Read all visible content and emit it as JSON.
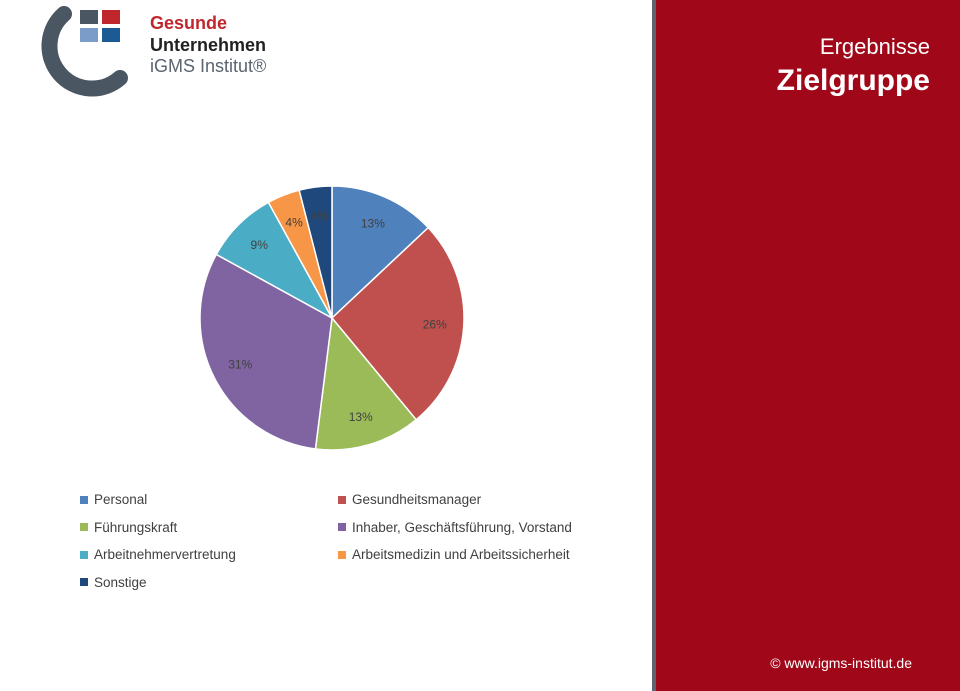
{
  "logo": {
    "line1": "Gesunde",
    "line2": "Unternehmen",
    "line3": "iGMS Institut®",
    "squares": [
      "#4a5662",
      "#c0272d",
      "#7b9bc8",
      "#1c5a94"
    ]
  },
  "header": {
    "pre_title": "Ergebnisse",
    "title": "Zielgruppe"
  },
  "footer": {
    "text": "© www.igms-institut.de"
  },
  "colors": {
    "right_panel": "#a00718",
    "divider": "#5b6470"
  },
  "chart_data": {
    "type": "pie",
    "title": "",
    "slices": [
      {
        "label": "Personal",
        "value": 13,
        "display": "13%",
        "color": "#4f81bd"
      },
      {
        "label": "Gesundheitsmanager",
        "value": 26,
        "display": "26%",
        "color": "#c0504d"
      },
      {
        "label": "Führungskraft",
        "value": 13,
        "display": "13%",
        "color": "#9bbb59"
      },
      {
        "label": "Inhaber, Geschäftsführung, Vorstand",
        "value": 31,
        "display": "31%",
        "color": "#8064a2"
      },
      {
        "label": "Arbeitnehmervertretung",
        "value": 9,
        "display": "9%",
        "color": "#4bacc6"
      },
      {
        "label": "Arbeitsmedizin und Arbeitssicherheit",
        "value": 4,
        "display": "4%",
        "color": "#f79646"
      },
      {
        "label": "Sonstige",
        "value": 4,
        "display": "4%",
        "color": "#1f497d"
      }
    ],
    "legend_position": "bottom"
  }
}
